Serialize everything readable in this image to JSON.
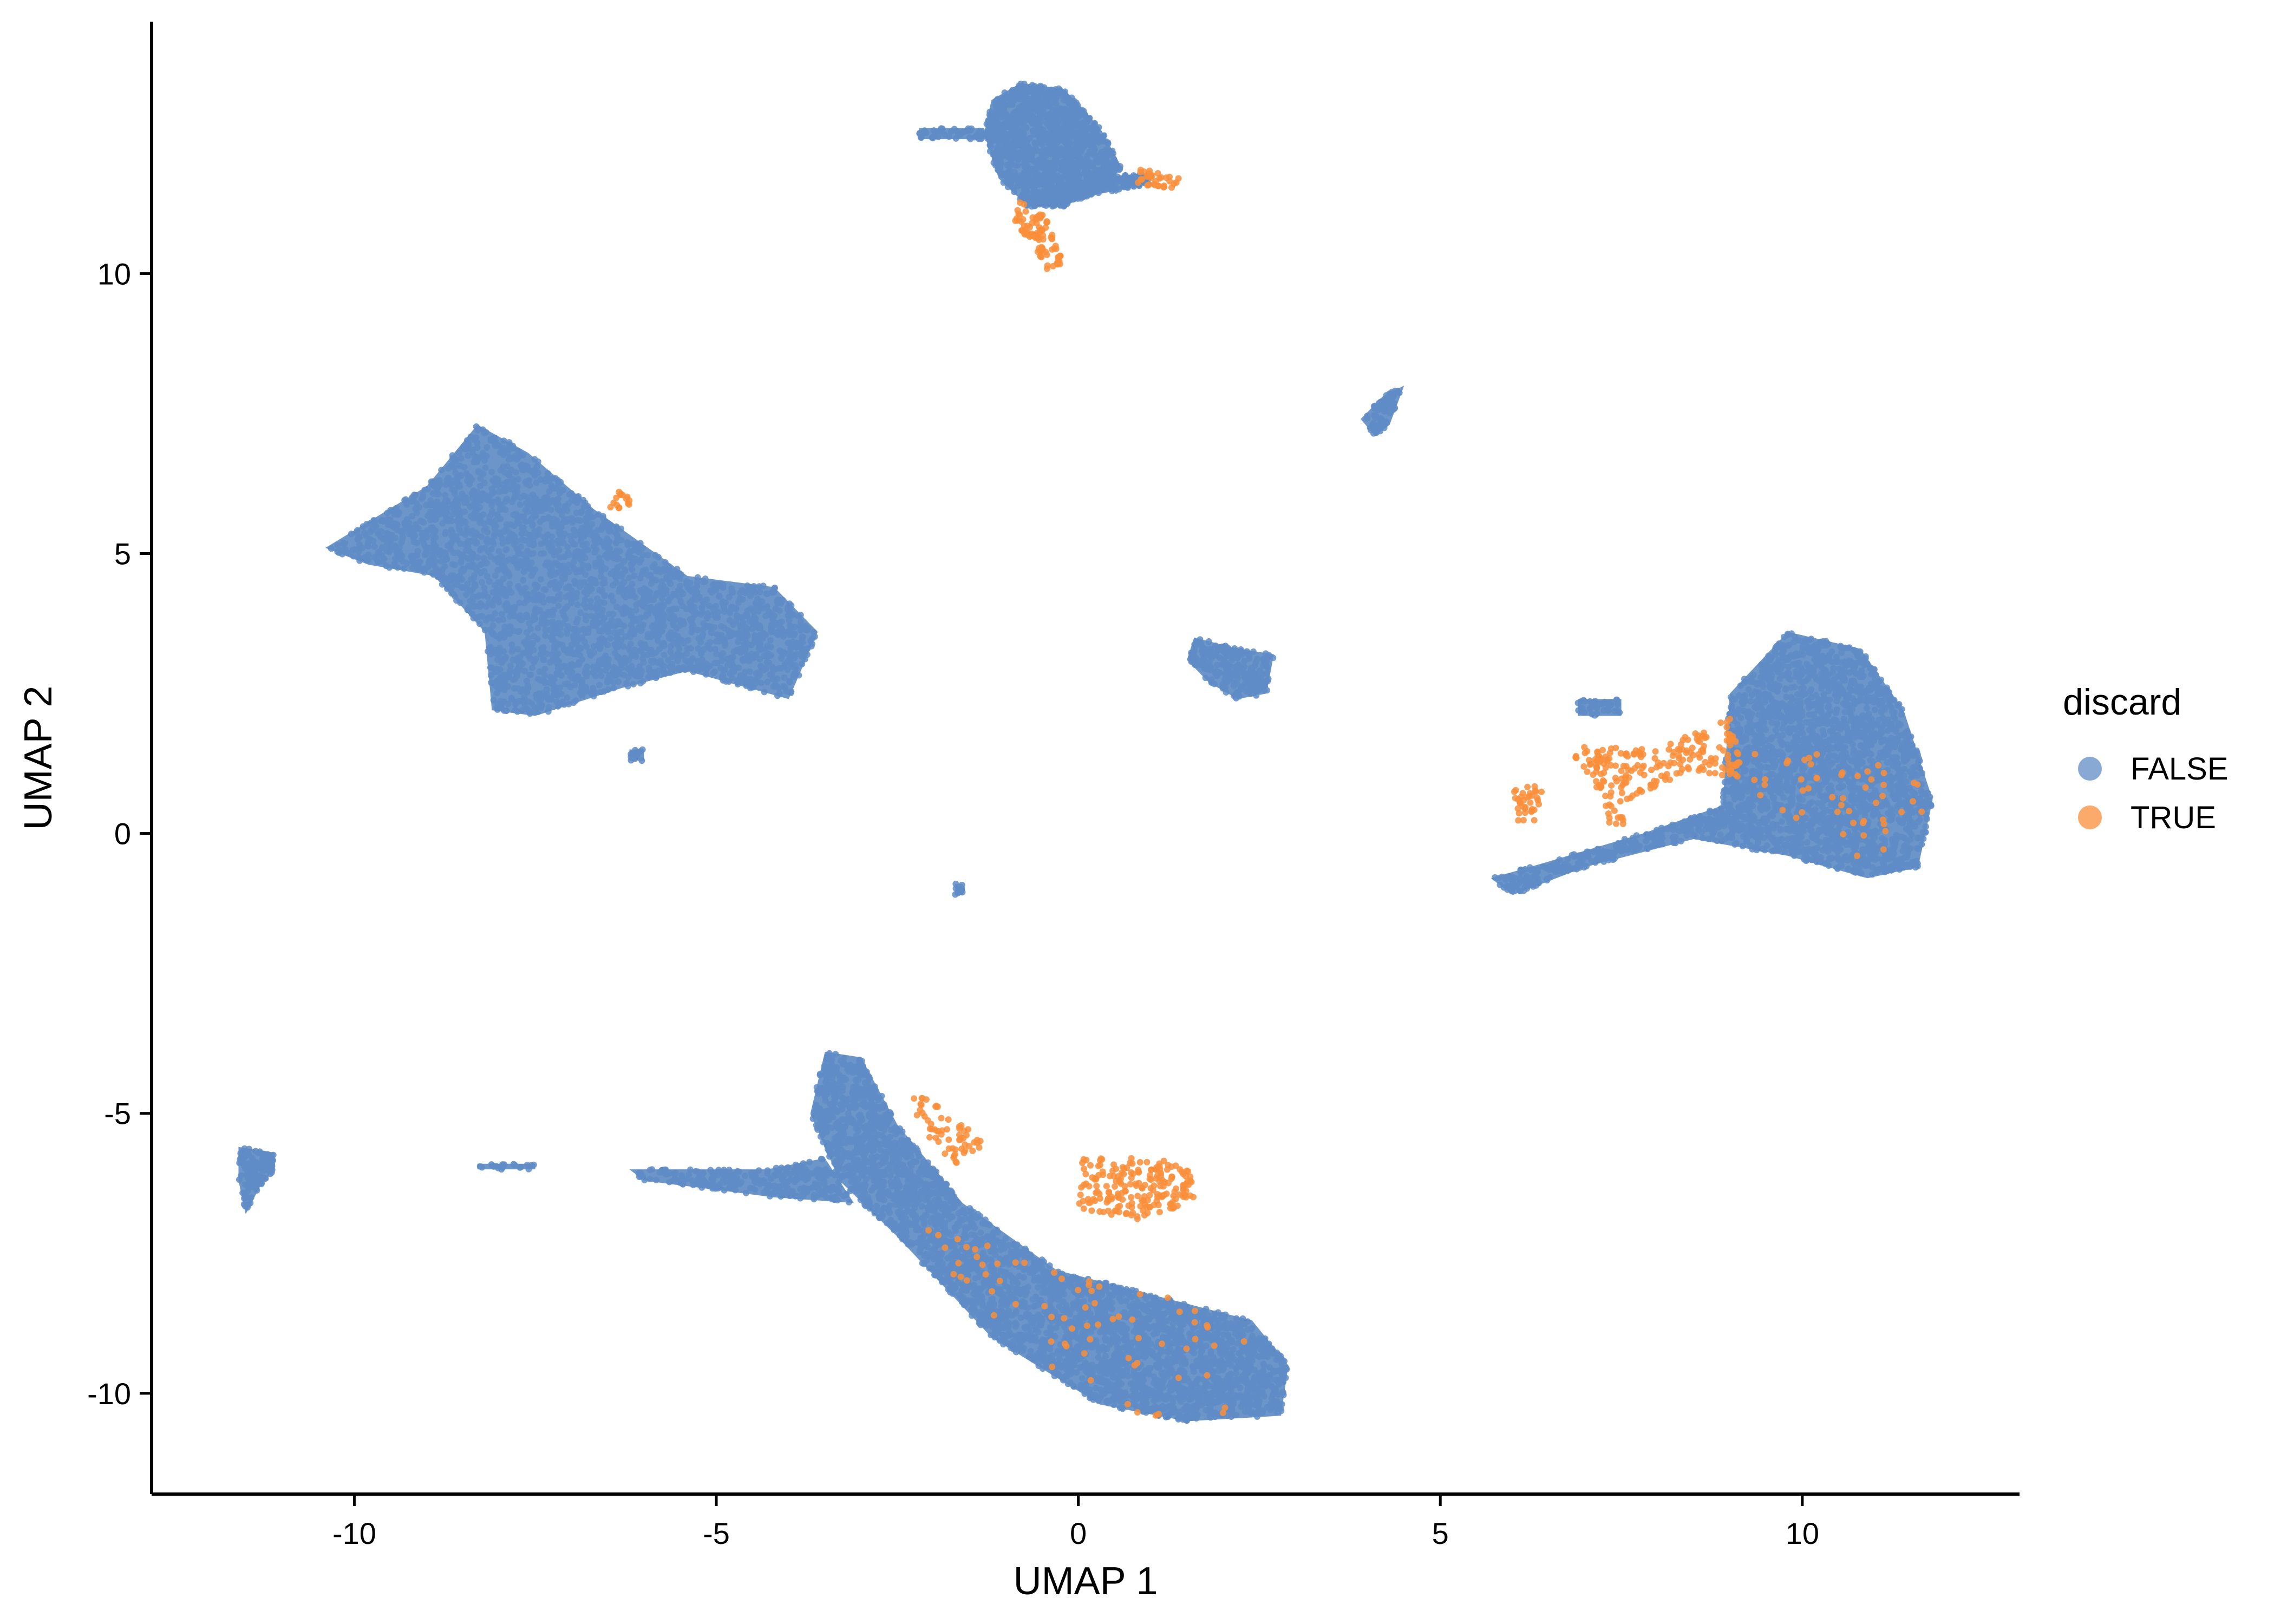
{
  "chart_data": {
    "type": "scatter",
    "title": "",
    "xlabel": "UMAP 1",
    "ylabel": "UMAP 2",
    "xlim": [
      -12.8,
      13
    ],
    "ylim": [
      -11.8,
      14.5
    ],
    "x_ticks": [
      -10,
      -5,
      0,
      5,
      10
    ],
    "y_ticks": [
      -10,
      -5,
      0,
      5,
      10
    ],
    "x_tick_labels": [
      "-10",
      "-5",
      "0",
      "5",
      "10"
    ],
    "y_tick_labels": [
      "-10",
      "-5",
      "0",
      "5",
      "10"
    ],
    "grid": false,
    "legend": {
      "title": "discard",
      "placement": "right",
      "entries": [
        {
          "label": "FALSE",
          "color": "#5f8cc6"
        },
        {
          "label": "TRUE",
          "color": "#f98e3a"
        }
      ]
    },
    "series": [
      {
        "name": "FALSE",
        "color": "#5f8cc6",
        "clusters": [
          {
            "shape": "poly",
            "points": [
              [
                -0.8,
                13.4
              ],
              [
                -0.2,
                13.3
              ],
              [
                0.3,
                12.6
              ],
              [
                0.6,
                11.9
              ],
              [
                0.3,
                11.5
              ],
              [
                -0.2,
                11.2
              ],
              [
                -0.7,
                11.2
              ],
              [
                -1.1,
                11.7
              ],
              [
                -1.3,
                12.5
              ],
              [
                -1.2,
                13.1
              ]
            ],
            "n": 1200
          },
          {
            "shape": "poly",
            "points": [
              [
                -0.3,
                11.6
              ],
              [
                0.9,
                11.8
              ],
              [
                1.0,
                11.6
              ],
              [
                -0.2,
                11.3
              ]
            ],
            "n": 160
          },
          {
            "shape": "poly",
            "points": [
              [
                -2.2,
                12.6
              ],
              [
                -1.3,
                12.6
              ],
              [
                -1.3,
                12.4
              ],
              [
                -2.2,
                12.4
              ]
            ],
            "n": 40
          },
          {
            "shape": "poly",
            "points": [
              [
                -10.4,
                5.1
              ],
              [
                -9.0,
                6.2
              ],
              [
                -8.3,
                7.3
              ],
              [
                -7.6,
                6.8
              ],
              [
                -6.7,
                5.8
              ],
              [
                -5.4,
                4.6
              ],
              [
                -4.2,
                4.4
              ],
              [
                -3.6,
                3.6
              ],
              [
                -4.0,
                2.4
              ],
              [
                -5.4,
                2.9
              ],
              [
                -6.3,
                2.6
              ],
              [
                -7.5,
                2.1
              ],
              [
                -8.1,
                2.2
              ],
              [
                -8.2,
                3.6
              ],
              [
                -8.9,
                4.6
              ],
              [
                -9.8,
                4.8
              ]
            ],
            "n": 2600
          },
          {
            "shape": "poly",
            "points": [
              [
                -6.2,
                1.5
              ],
              [
                -6.0,
                1.5
              ],
              [
                -6.0,
                1.3
              ],
              [
                -6.2,
                1.3
              ]
            ],
            "n": 12
          },
          {
            "shape": "poly",
            "points": [
              [
                1.6,
                3.5
              ],
              [
                2.2,
                3.3
              ],
              [
                2.7,
                3.2
              ],
              [
                2.6,
                2.5
              ],
              [
                2.2,
                2.4
              ],
              [
                1.8,
                2.7
              ],
              [
                1.5,
                3.1
              ]
            ],
            "n": 220
          },
          {
            "shape": "poly",
            "points": [
              [
                4.2,
                7.8
              ],
              [
                4.5,
                8.0
              ],
              [
                4.3,
                7.3
              ],
              [
                4.1,
                7.1
              ],
              [
                3.9,
                7.4
              ]
            ],
            "n": 60
          },
          {
            "shape": "poly",
            "points": [
              [
                5.7,
                -0.8
              ],
              [
                6.5,
                -0.5
              ],
              [
                7.8,
                0.0
              ],
              [
                8.9,
                0.5
              ],
              [
                9.0,
                2.5
              ],
              [
                9.8,
                3.6
              ],
              [
                10.8,
                3.3
              ],
              [
                11.4,
                2.2
              ],
              [
                11.8,
                0.6
              ],
              [
                11.6,
                -0.6
              ],
              [
                10.9,
                -0.8
              ],
              [
                9.8,
                -0.4
              ],
              [
                8.5,
                -0.1
              ],
              [
                7.0,
                -0.6
              ],
              [
                6.0,
                -1.1
              ]
            ],
            "n": 2400
          },
          {
            "shape": "poly",
            "points": [
              [
                6.9,
                2.4
              ],
              [
                7.5,
                2.4
              ],
              [
                7.5,
                2.1
              ],
              [
                6.9,
                2.1
              ]
            ],
            "n": 40
          },
          {
            "shape": "poly",
            "points": [
              [
                -3.5,
                -3.9
              ],
              [
                -3.0,
                -4.0
              ],
              [
                -2.5,
                -5.2
              ],
              [
                -1.6,
                -6.6
              ],
              [
                -0.3,
                -7.8
              ],
              [
                1.2,
                -8.3
              ],
              [
                2.4,
                -8.7
              ],
              [
                2.9,
                -9.5
              ],
              [
                2.8,
                -10.4
              ],
              [
                1.5,
                -10.5
              ],
              [
                0.3,
                -10.2
              ],
              [
                -1.2,
                -9.0
              ],
              [
                -2.5,
                -7.2
              ],
              [
                -3.3,
                -6.2
              ],
              [
                -3.7,
                -5.0
              ]
            ],
            "n": 3200
          },
          {
            "shape": "poly",
            "points": [
              [
                -6.2,
                -6.0
              ],
              [
                -4.3,
                -6.0
              ],
              [
                -3.5,
                -5.8
              ],
              [
                -3.1,
                -6.6
              ],
              [
                -4.2,
                -6.5
              ],
              [
                -6.0,
                -6.2
              ]
            ],
            "n": 260
          },
          {
            "shape": "poly",
            "points": [
              [
                -11.6,
                -5.6
              ],
              [
                -11.1,
                -5.7
              ],
              [
                -11.1,
                -6.0
              ],
              [
                -11.3,
                -6.3
              ],
              [
                -11.5,
                -6.8
              ],
              [
                -11.6,
                -6.2
              ]
            ],
            "n": 120
          },
          {
            "shape": "poly",
            "points": [
              [
                -8.3,
                -5.9
              ],
              [
                -7.5,
                -5.9
              ],
              [
                -7.5,
                -6.0
              ],
              [
                -8.3,
                -6.0
              ]
            ],
            "n": 20
          },
          {
            "shape": "poly",
            "points": [
              [
                -1.7,
                -0.9
              ],
              [
                -1.6,
                -0.9
              ],
              [
                -1.6,
                -1.1
              ],
              [
                -1.7,
                -1.1
              ]
            ],
            "n": 10
          }
        ]
      },
      {
        "name": "TRUE",
        "color": "#f98e3a",
        "clusters": [
          {
            "shape": "poly",
            "points": [
              [
                -0.8,
                11.3
              ],
              [
                -0.4,
                11.0
              ],
              [
                -0.2,
                10.2
              ],
              [
                -0.4,
                10.0
              ],
              [
                -0.6,
                10.4
              ],
              [
                -0.9,
                11.0
              ]
            ],
            "n": 90
          },
          {
            "shape": "poly",
            "points": [
              [
                0.8,
                11.9
              ],
              [
                1.4,
                11.7
              ],
              [
                1.4,
                11.5
              ],
              [
                0.8,
                11.6
              ]
            ],
            "n": 35
          },
          {
            "shape": "poly",
            "points": [
              [
                -6.5,
                6.1
              ],
              [
                -6.2,
                6.1
              ],
              [
                -6.2,
                5.8
              ],
              [
                -6.5,
                5.8
              ]
            ],
            "n": 15
          },
          {
            "shape": "poly",
            "points": [
              [
                6.0,
                0.8
              ],
              [
                6.4,
                0.9
              ],
              [
                6.4,
                0.2
              ],
              [
                6.0,
                0.2
              ]
            ],
            "n": 35
          },
          {
            "shape": "poly",
            "points": [
              [
                6.8,
                1.6
              ],
              [
                8.0,
                1.5
              ],
              [
                9.0,
                2.1
              ],
              [
                9.2,
                1.0
              ],
              [
                8.4,
                1.1
              ],
              [
                7.6,
                0.6
              ],
              [
                7.5,
                0.0
              ],
              [
                7.3,
                0.2
              ],
              [
                7.1,
                1.0
              ],
              [
                6.9,
                1.2
              ]
            ],
            "n": 220
          },
          {
            "shape": "poly",
            "points": [
              [
                9.2,
                1.6
              ],
              [
                10.8,
                1.6
              ],
              [
                11.8,
                0.8
              ],
              [
                11.2,
                -0.9
              ],
              [
                10.0,
                0.2
              ],
              [
                9.4,
                0.6
              ]
            ],
            "n": 50
          },
          {
            "shape": "poly",
            "points": [
              [
                0.0,
                -5.8
              ],
              [
                1.6,
                -5.8
              ],
              [
                1.6,
                -6.6
              ],
              [
                0.8,
                -6.9
              ],
              [
                0.0,
                -6.7
              ]
            ],
            "n": 200
          },
          {
            "shape": "poly",
            "points": [
              [
                -2.3,
                -4.6
              ],
              [
                -1.5,
                -5.2
              ],
              [
                -1.3,
                -5.6
              ],
              [
                -1.7,
                -5.9
              ],
              [
                -2.2,
                -5.3
              ]
            ],
            "n": 60
          },
          {
            "shape": "poly",
            "points": [
              [
                -2.5,
                -6.9
              ],
              [
                0.5,
                -7.8
              ],
              [
                2.5,
                -9.0
              ],
              [
                2.0,
                -10.4
              ],
              [
                0.5,
                -10.4
              ],
              [
                -1.0,
                -9.0
              ]
            ],
            "n": 70
          }
        ]
      }
    ]
  }
}
